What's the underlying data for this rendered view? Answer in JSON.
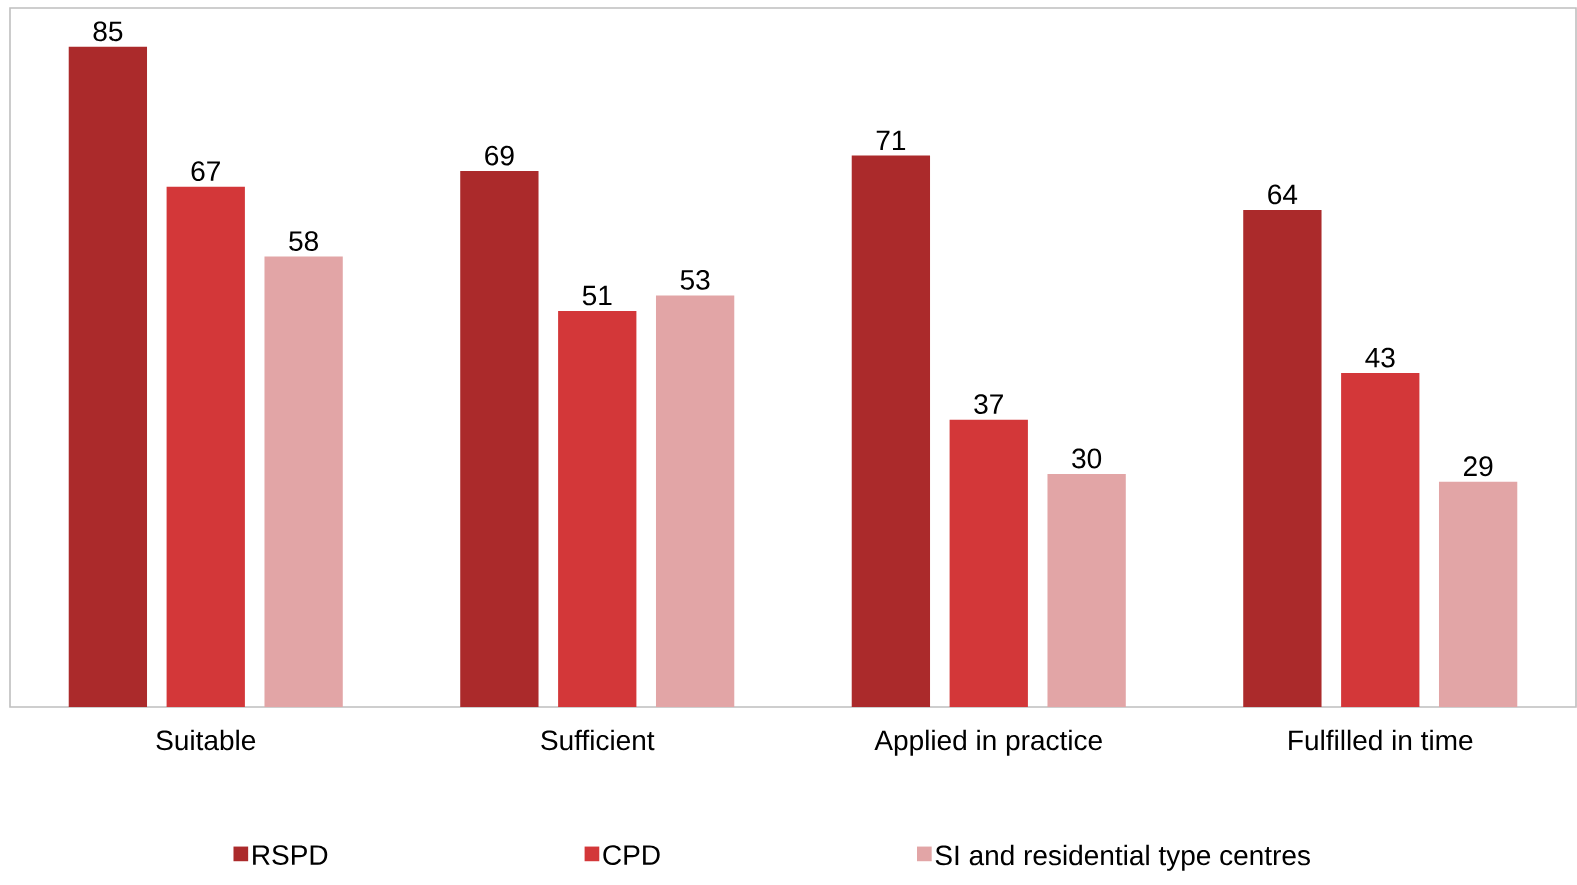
{
  "chart_data": {
    "type": "bar",
    "categories": [
      "Suitable",
      "Sufficient",
      "Applied in practice",
      "Fulfilled in time"
    ],
    "series": [
      {
        "name": "RSPD",
        "color": "#ab2a2b",
        "values": [
          85,
          69,
          71,
          64
        ]
      },
      {
        "name": "CPD",
        "color": "#d33739",
        "values": [
          67,
          51,
          37,
          43
        ]
      },
      {
        "name": "SI and residential type centres",
        "color": "#e2a5a6",
        "values": [
          58,
          53,
          30,
          29
        ]
      }
    ],
    "data_labels": true,
    "legend": "bottom",
    "ylim": [
      0,
      90
    ],
    "tick_labels": "x"
  }
}
